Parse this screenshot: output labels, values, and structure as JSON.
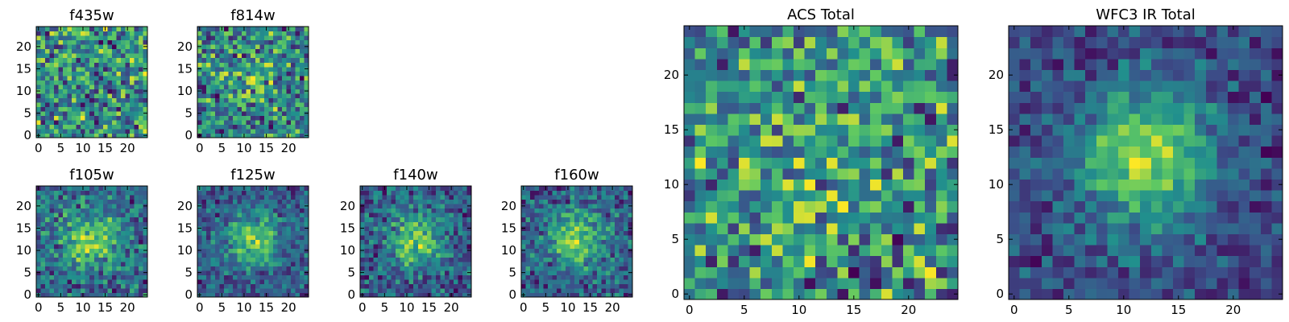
{
  "chart_data": [
    {
      "type": "heatmap",
      "title": "f435w",
      "grid_size": 25,
      "center_peak": 0.0,
      "noise": 0.55,
      "seed": 11,
      "xticks": [
        0,
        5,
        10,
        15,
        20
      ],
      "yticks": [
        0,
        5,
        10,
        15,
        20
      ],
      "xlim": [
        -0.5,
        24.5
      ],
      "ylim": [
        -0.5,
        24.5
      ],
      "colormap": [
        "#440154",
        "#3b528b",
        "#21908d",
        "#5dc863",
        "#fde725"
      ]
    },
    {
      "type": "heatmap",
      "title": "f814w",
      "grid_size": 25,
      "center_peak": 0.15,
      "noise": 0.5,
      "seed": 23,
      "xticks": [
        0,
        5,
        10,
        15,
        20
      ],
      "yticks": [
        0,
        5,
        10,
        15,
        20
      ],
      "xlim": [
        -0.5,
        24.5
      ],
      "ylim": [
        -0.5,
        24.5
      ],
      "colormap": [
        "#440154",
        "#3b528b",
        "#21908d",
        "#5dc863",
        "#fde725"
      ]
    },
    {
      "type": "heatmap",
      "title": "f105w",
      "grid_size": 25,
      "center_peak": 0.5,
      "noise": 0.45,
      "seed": 37,
      "xticks": [
        0,
        5,
        10,
        15,
        20
      ],
      "yticks": [
        0,
        5,
        10,
        15,
        20
      ],
      "xlim": [
        -0.5,
        24.5
      ],
      "ylim": [
        -0.5,
        24.5
      ],
      "colormap": [
        "#440154",
        "#3b528b",
        "#21908d",
        "#5dc863",
        "#fde725"
      ]
    },
    {
      "type": "heatmap",
      "title": "f125w",
      "grid_size": 25,
      "center_peak": 0.55,
      "noise": 0.4,
      "seed": 41,
      "xticks": [
        0,
        5,
        10,
        15,
        20
      ],
      "yticks": [
        0,
        5,
        10,
        15,
        20
      ],
      "xlim": [
        -0.5,
        24.5
      ],
      "ylim": [
        -0.5,
        24.5
      ],
      "colormap": [
        "#440154",
        "#3b528b",
        "#21908d",
        "#5dc863",
        "#fde725"
      ]
    },
    {
      "type": "heatmap",
      "title": "f140w",
      "grid_size": 25,
      "center_peak": 0.5,
      "noise": 0.42,
      "seed": 53,
      "xticks": [
        0,
        5,
        10,
        15,
        20
      ],
      "yticks": [
        0,
        5,
        10,
        15,
        20
      ],
      "xlim": [
        -0.5,
        24.5
      ],
      "ylim": [
        -0.5,
        24.5
      ],
      "colormap": [
        "#440154",
        "#3b528b",
        "#21908d",
        "#5dc863",
        "#fde725"
      ]
    },
    {
      "type": "heatmap",
      "title": "f160w",
      "grid_size": 25,
      "center_peak": 0.55,
      "noise": 0.42,
      "seed": 67,
      "xticks": [
        0,
        5,
        10,
        15,
        20
      ],
      "yticks": [
        0,
        5,
        10,
        15,
        20
      ],
      "xlim": [
        -0.5,
        24.5
      ],
      "ylim": [
        -0.5,
        24.5
      ],
      "colormap": [
        "#440154",
        "#3b528b",
        "#21908d",
        "#5dc863",
        "#fde725"
      ]
    },
    {
      "type": "heatmap",
      "title": "ACS Total",
      "grid_size": 25,
      "center_peak": 0.1,
      "noise": 0.5,
      "seed": 79,
      "xticks": [
        0,
        5,
        10,
        15,
        20
      ],
      "yticks": [
        0,
        5,
        10,
        15,
        20
      ],
      "xlim": [
        -0.5,
        24.5
      ],
      "ylim": [
        -0.5,
        24.5
      ],
      "colormap": [
        "#440154",
        "#3b528b",
        "#21908d",
        "#5dc863",
        "#fde725"
      ]
    },
    {
      "type": "heatmap",
      "title": "WFC3 IR Total",
      "grid_size": 25,
      "center_peak": 0.7,
      "noise": 0.32,
      "seed": 97,
      "xticks": [
        0,
        5,
        10,
        15,
        20
      ],
      "yticks": [
        0,
        5,
        10,
        15,
        20
      ],
      "xlim": [
        -0.5,
        24.5
      ],
      "ylim": [
        -0.5,
        24.5
      ],
      "colormap": [
        "#440154",
        "#3b528b",
        "#21908d",
        "#5dc863",
        "#fde725"
      ]
    }
  ]
}
